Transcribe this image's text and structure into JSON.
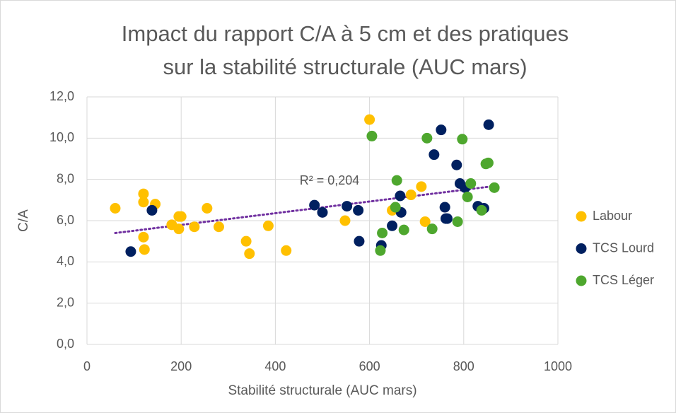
{
  "chart_data": {
    "type": "scatter",
    "title": [
      "Impact du rapport C/A à 5 cm et des pratiques",
      "sur la stabilité structurale (AUC mars)"
    ],
    "x_label": "Stabilité structurale (AUC mars)",
    "y_label": "C/A",
    "annotation": "R² = 0,204",
    "trendline": true,
    "trendline_color": "#7030a0",
    "grid": true,
    "legend": "right",
    "xlim": [
      0,
      1000
    ],
    "xticks": [
      0,
      200,
      400,
      600,
      800,
      1000
    ],
    "ylim": [
      0,
      12
    ],
    "yticks": [
      {
        "value": 0,
        "label": "0,0"
      },
      {
        "value": 2,
        "label": "2,0"
      },
      {
        "value": 4,
        "label": "4,0"
      },
      {
        "value": 6,
        "label": "6,0"
      },
      {
        "value": 8,
        "label": "8,0"
      },
      {
        "value": 10,
        "label": "10,0"
      },
      {
        "value": 12,
        "label": "12,0"
      }
    ],
    "series": [
      {
        "name": "Labour",
        "color": "#ffc000",
        "x": [
          60,
          120,
          120,
          120,
          122,
          145,
          180,
          195,
          195,
          200,
          228,
          255,
          280,
          338,
          345,
          385,
          423,
          548,
          600,
          648,
          688,
          710,
          718
        ],
        "values": [
          6.6,
          7.3,
          6.9,
          5.2,
          4.6,
          6.8,
          5.8,
          5.6,
          6.2,
          6.2,
          5.7,
          6.6,
          5.7,
          5.0,
          4.4,
          5.75,
          4.55,
          6.0,
          10.9,
          6.5,
          7.25,
          7.65,
          5.95
        ]
      },
      {
        "name": "TCS Lourd",
        "color": "#002060",
        "x": [
          93,
          138,
          483,
          500,
          552,
          576,
          578,
          625,
          648,
          665,
          667,
          737,
          752,
          760,
          762,
          765,
          785,
          792,
          803,
          830,
          843,
          853
        ],
        "values": [
          4.5,
          6.5,
          6.75,
          6.4,
          6.7,
          6.5,
          5.0,
          4.8,
          5.75,
          7.2,
          6.4,
          9.2,
          10.4,
          6.65,
          6.1,
          6.1,
          8.7,
          7.8,
          7.6,
          6.7,
          6.6,
          10.65
        ]
      },
      {
        "name": "TCS Léger",
        "color": "#4ea72e",
        "x": [
          605,
          623,
          627,
          655,
          658,
          673,
          722,
          733,
          787,
          797,
          808,
          815,
          838,
          847,
          852,
          865
        ],
        "values": [
          10.1,
          4.55,
          5.4,
          6.65,
          7.95,
          5.55,
          10.0,
          5.6,
          5.95,
          9.95,
          7.15,
          7.8,
          6.5,
          8.75,
          8.8,
          7.6
        ]
      }
    ]
  }
}
